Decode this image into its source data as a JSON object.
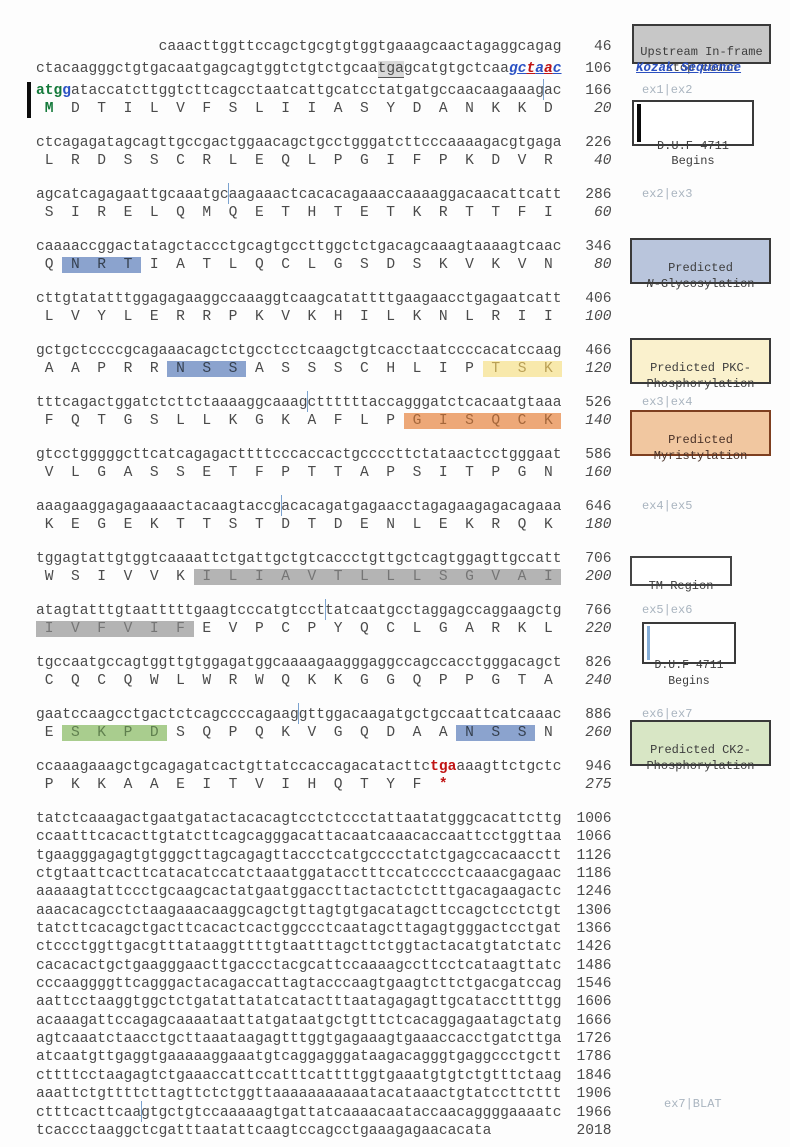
{
  "annotations": {
    "upstream_stop": "Upstream In-frame\nstop codon",
    "kozak": "Kozak Sequence",
    "exon_labels": [
      "ex1|ex2",
      "ex2|ex3",
      "ex3|ex4",
      "ex4|ex5",
      "ex5|ex6",
      "ex6|ex7",
      "ex7|BLAT"
    ],
    "duf1": "D.U.F 4711\nBegins",
    "duf2": "D.U.F 4711\nBegins",
    "nglyc_line1": "Predicted\n",
    "nglyc_n": "N",
    "nglyc_rest": "-Glycosylation",
    "pkc": "Predicted PKC-\nPhosphorylation",
    "myr": "Predicted\nMyristylation",
    "tm": "TM Region",
    "ck2": "Predicted CK2-\nPhosphorylation"
  },
  "colors": {
    "start_codon": "#157a3b",
    "kozak_blue": "#2b52c4",
    "stop_red": "#c01414",
    "glyc_highlight": "#8ba3ce",
    "pkc_highlight": "#f8e9ac",
    "myr_highlight": "#eda878",
    "tm_highlight": "#b4b4b4",
    "ck2_highlight": "#a9cd8e"
  },
  "rows": [
    {
      "kind": "dna",
      "num": "46",
      "segments": [
        {
          "t": "              caaacttggttccagctgcgtgtggtgaaagcaactagaggcagag",
          "c": "plain"
        }
      ]
    },
    {
      "kind": "dna",
      "num": "106",
      "sub": true,
      "segments": [
        {
          "t": "ctacaagggctgtgacaatgagcagtggtctgtctgcaa",
          "c": "plain"
        },
        {
          "t": "tga",
          "c": "stop"
        },
        {
          "t": "gcatgtgctcaa",
          "c": "plain"
        },
        {
          "t": "g",
          "c": "kz-b"
        },
        {
          "t": "c",
          "c": "kz-b"
        },
        {
          "t": "t",
          "c": "kz-r"
        },
        {
          "t": "a",
          "c": "kz-b"
        },
        {
          "t": "a",
          "c": "kz-r"
        },
        {
          "t": "c",
          "c": "kz-b"
        }
      ]
    },
    {
      "kind": "dna",
      "num": "166",
      "sub": true,
      "segments": [
        {
          "t": "atg",
          "c": "b-green"
        },
        {
          "t": "g",
          "c": "b-blue"
        },
        {
          "t": "ataccatcttggtcttcagcctaatcattgcatcctatgatgccaacaagaaag",
          "c": "plain"
        },
        {
          "tick": true
        },
        {
          "t": "ac",
          "c": "plain"
        }
      ]
    },
    {
      "kind": "protein",
      "num": "20",
      "italic": true,
      "segments": [
        {
          "t": " M ",
          "c": "b-green"
        },
        {
          "t": " D  T  I  L  V  F  S  L  I  I  A  S  Y  D  A  N  K  K  D ",
          "c": "plain"
        }
      ]
    },
    {
      "kind": "dna",
      "num": "226",
      "gs": true,
      "segments": [
        {
          "t": "ctcagagatagcagttgccgactggaacagctgcctgggatcttcccaaaagacgtgaga",
          "c": "plain"
        }
      ]
    },
    {
      "kind": "protein",
      "num": "40",
      "italic": true,
      "segments": [
        {
          "t": " L  R  D  S  S  C  R  L  E  Q  L  P  G  I  F  P  K  D  V  R ",
          "c": "plain"
        }
      ]
    },
    {
      "kind": "dna",
      "num": "286",
      "gs": true,
      "segments": [
        {
          "t": "agcatcagagaattgcaaatgc",
          "c": "plain"
        },
        {
          "tick": true
        },
        {
          "t": "aagaaactcacacagaaaccaaaaggacaacattcatt",
          "c": "plain"
        }
      ]
    },
    {
      "kind": "protein",
      "num": "60",
      "italic": true,
      "segments": [
        {
          "t": " S  I  R  E  L  Q  M  Q  E  T  H  T  E  T  K  R  T  T  F  I ",
          "c": "plain"
        }
      ]
    },
    {
      "kind": "dna",
      "num": "346",
      "gs": true,
      "segments": [
        {
          "t": "caaaaccggactatagctaccctgcagtgccttggctctgacagcaaagtaaaagtcaac",
          "c": "plain"
        }
      ]
    },
    {
      "kind": "protein",
      "num": "80",
      "italic": true,
      "segments": [
        {
          "t": " Q ",
          "c": "plain"
        },
        {
          "t": " N  R  T ",
          "c": "hl-blue"
        },
        {
          "t": " I  A  T  L  Q  C  L  G  S  D  S  K  V  K  V  N ",
          "c": "plain"
        }
      ]
    },
    {
      "kind": "dna",
      "num": "406",
      "gs": true,
      "segments": [
        {
          "t": "cttgtatatttggagagaaggccaaaggtcaagcatattttgaagaacctgagaatcatt",
          "c": "plain"
        }
      ]
    },
    {
      "kind": "protein",
      "num": "100",
      "italic": true,
      "segments": [
        {
          "t": " L  V  Y  L  E  R  R  P  K  V  K  H  I  L  K  N  L  R  I  I ",
          "c": "plain"
        }
      ]
    },
    {
      "kind": "dna",
      "num": "466",
      "gs": true,
      "segments": [
        {
          "t": "gctgctccccgcagaaacagctctgcctcctcaagctgtcacctaatccccacatccaag",
          "c": "plain"
        }
      ]
    },
    {
      "kind": "protein",
      "num": "120",
      "italic": true,
      "segments": [
        {
          "t": " A  A  P  R  R ",
          "c": "plain"
        },
        {
          "t": " N  S  S ",
          "c": "hl-blue"
        },
        {
          "t": " A  S  S  S  C  H  L  I  P ",
          "c": "plain"
        },
        {
          "t": " T  S  K ",
          "c": "hl-yellow"
        }
      ]
    },
    {
      "kind": "dna",
      "num": "526",
      "gs": true,
      "segments": [
        {
          "t": "tttcagactggatctcttctaaaaggcaaag",
          "c": "plain"
        },
        {
          "tick": true
        },
        {
          "t": "cttttttaccagggatctcacaatgtaaa",
          "c": "plain"
        }
      ]
    },
    {
      "kind": "protein",
      "num": "140",
      "italic": true,
      "segments": [
        {
          "t": " F  Q  T  G  S  L  L  K  G  K  A  F  L  P ",
          "c": "plain"
        },
        {
          "t": " G  I  S  Q  C  K ",
          "c": "hl-orange"
        }
      ]
    },
    {
      "kind": "dna",
      "num": "586",
      "gs": true,
      "segments": [
        {
          "t": "gtcctgggggcttcatcagagacttttcccaccactgccccttctataactcctgggaat",
          "c": "plain"
        }
      ]
    },
    {
      "kind": "protein",
      "num": "160",
      "italic": true,
      "segments": [
        {
          "t": " V  L  G  A  S  S  E  T  F  P  T  T  A  P  S  I  T  P  G  N ",
          "c": "plain"
        }
      ]
    },
    {
      "kind": "dna",
      "num": "646",
      "gs": true,
      "segments": [
        {
          "t": "aaagaaggagagaaaactacaagtaccg",
          "c": "plain"
        },
        {
          "tick": true
        },
        {
          "t": "acacagatgagaacctagagaagagacagaaa",
          "c": "plain"
        }
      ]
    },
    {
      "kind": "protein",
      "num": "180",
      "italic": true,
      "segments": [
        {
          "t": " K  E  G  E  K  T  T  S  T  D  T  D  E  N  L  E  K  R  Q  K ",
          "c": "plain"
        }
      ]
    },
    {
      "kind": "dna",
      "num": "706",
      "gs": true,
      "segments": [
        {
          "t": "tggagtattgtggtcaaaattctgattgctgtcaccctgttgctcagtggagttgccatt",
          "c": "plain"
        }
      ]
    },
    {
      "kind": "protein",
      "num": "200",
      "italic": true,
      "segments": [
        {
          "t": " W  S  I  V  V  K ",
          "c": "plain"
        },
        {
          "t": " I  L  I  A  V  T  L  L  L  S  G  V  A  I ",
          "c": "hl-gray"
        }
      ]
    },
    {
      "kind": "dna",
      "num": "766",
      "gs": true,
      "segments": [
        {
          "t": "atagtatttgtaatttttgaagtcccatgtcct",
          "c": "plain"
        },
        {
          "tick": true
        },
        {
          "t": "tatcaatgcctaggagccaggaagctg",
          "c": "plain"
        }
      ]
    },
    {
      "kind": "protein",
      "num": "220",
      "italic": true,
      "segments": [
        {
          "t": " I  V  F  V  I  F ",
          "c": "hl-gray"
        },
        {
          "t": " E  V  P  C  P  Y  Q  C  L  G  A  R  K  L ",
          "c": "plain"
        }
      ]
    },
    {
      "kind": "dna",
      "num": "826",
      "gs": true,
      "segments": [
        {
          "t": "tgccaatgccagtggttgtggagatggcaaaagaagggaggccagccacctgggacagct",
          "c": "plain"
        }
      ]
    },
    {
      "kind": "protein",
      "num": "240",
      "italic": true,
      "segments": [
        {
          "t": " C  Q  C  Q  W  L  W  R  W  Q  K  K  G  G  Q  P  P  G  T  A ",
          "c": "plain"
        }
      ]
    },
    {
      "kind": "dna",
      "num": "886",
      "gs": true,
      "segments": [
        {
          "t": "gaatccaagcctgactctcagccccagaag",
          "c": "plain"
        },
        {
          "tick": true
        },
        {
          "t": "gttggacaagatgctgccaattcatcaaac",
          "c": "plain"
        }
      ]
    },
    {
      "kind": "protein",
      "num": "260",
      "italic": true,
      "segments": [
        {
          "t": " E ",
          "c": "plain"
        },
        {
          "t": " S  K  P  D ",
          "c": "hl-green"
        },
        {
          "t": " S  Q  P  Q  K  V  G  Q  D  A  A ",
          "c": "plain"
        },
        {
          "t": " N  S  S ",
          "c": "hl-blue"
        },
        {
          "t": " N ",
          "c": "plain"
        }
      ]
    },
    {
      "kind": "dna",
      "num": "946",
      "gs": true,
      "segments": [
        {
          "t": "ccaaagaaagctgcagagatcactgttatccaccagacatacttc",
          "c": "plain"
        },
        {
          "t": "tga",
          "c": "b-red"
        },
        {
          "t": "aaagttctgctc",
          "c": "plain"
        }
      ]
    },
    {
      "kind": "protein",
      "num": "275",
      "italic": true,
      "segments": [
        {
          "t": " P  K  K  A  A  E  I  T  V  I  H  Q  T  Y  F ",
          "c": "plain"
        },
        {
          "t": " * ",
          "c": "b-red"
        },
        {
          "t": "            ",
          "c": "plain"
        }
      ]
    },
    {
      "kind": "dna",
      "utr": true,
      "gs": true,
      "num": "1006",
      "segments": [
        {
          "t": "tatctcaaagactgaatgatactacacagtcctctccctattaatatgggcacattcttg",
          "c": "plain"
        }
      ]
    },
    {
      "kind": "dna",
      "utr": true,
      "num": "1066",
      "segments": [
        {
          "t": "ccaatttcacacttgtatcttcagcagggacattacaatcaaacaccaattcctggttaa",
          "c": "plain"
        }
      ]
    },
    {
      "kind": "dna",
      "utr": true,
      "num": "1126",
      "segments": [
        {
          "t": "tgaagggagagtgtgggcttagcagagttaccctcatgcccctatctgagccacaacctt",
          "c": "plain"
        }
      ]
    },
    {
      "kind": "dna",
      "utr": true,
      "num": "1186",
      "segments": [
        {
          "t": "ctgtaattcacttcatacatccatctaaatggatacctttccatcccctcaaacgagaac",
          "c": "plain"
        }
      ]
    },
    {
      "kind": "dna",
      "utr": true,
      "num": "1246",
      "segments": [
        {
          "t": "aaaaagtattccctgcaagcactatgaatggaccttactactctctttgacagaagactc",
          "c": "plain"
        }
      ]
    },
    {
      "kind": "dna",
      "utr": true,
      "num": "1306",
      "segments": [
        {
          "t": "aaacacagcctctaagaaacaaggcagctgttagtgtgacatagcttccagctcctctgt",
          "c": "plain"
        }
      ]
    },
    {
      "kind": "dna",
      "utr": true,
      "num": "1366",
      "segments": [
        {
          "t": "tatcttcacagctgacttcacactcactggccctcaatagcttagagtgggactcctgat",
          "c": "plain"
        }
      ]
    },
    {
      "kind": "dna",
      "utr": true,
      "num": "1426",
      "segments": [
        {
          "t": "ctccctggttgacgtttataaggttttgtaatttagcttctggtactacatgtatctatc",
          "c": "plain"
        }
      ]
    },
    {
      "kind": "dna",
      "utr": true,
      "num": "1486",
      "segments": [
        {
          "t": "cacacactgctgaagggaacttgaccctacgcattccaaaagccttcctcataagttatc",
          "c": "plain"
        }
      ]
    },
    {
      "kind": "dna",
      "utr": true,
      "num": "1546",
      "segments": [
        {
          "t": "cccaaggggttcagggactacagaccattagtacccaagtgaagtcttctgacgatccag",
          "c": "plain"
        }
      ]
    },
    {
      "kind": "dna",
      "utr": true,
      "num": "1606",
      "segments": [
        {
          "t": "aattcctaaggtggctctgatattatatcatactttaatagagagttgcataccttttgg",
          "c": "plain"
        }
      ]
    },
    {
      "kind": "dna",
      "utr": true,
      "num": "1666",
      "segments": [
        {
          "t": "acaaagattccagagcaaaataattatgataatgctgtttctcacaggagaatagctatg",
          "c": "plain"
        }
      ]
    },
    {
      "kind": "dna",
      "utr": true,
      "num": "1726",
      "segments": [
        {
          "t": "agtcaaatctaacctgcttaaataagagtttggtgagaaagtgaaaccacctgatcttga",
          "c": "plain"
        }
      ]
    },
    {
      "kind": "dna",
      "utr": true,
      "num": "1786",
      "segments": [
        {
          "t": "atcaatgttgaggtgaaaaaggaaatgtcaggagggataagacagggtgaggccctgctt",
          "c": "plain"
        }
      ]
    },
    {
      "kind": "dna",
      "utr": true,
      "num": "1846",
      "segments": [
        {
          "t": "cttttcctaagagtctgaaaccattccatttcattttggtgaaatgtgtctgtttctaag",
          "c": "plain"
        }
      ]
    },
    {
      "kind": "dna",
      "utr": true,
      "num": "1906",
      "segments": [
        {
          "t": "aaattctgttttcttagttctctggttaaaaaaaaaaatacataaactgtatccttcttt",
          "c": "plain"
        }
      ]
    },
    {
      "kind": "dna",
      "utr": true,
      "num": "1966",
      "segments": [
        {
          "t": "ctttcacttcaa",
          "c": "plain"
        },
        {
          "tick": true
        },
        {
          "t": "gtgctgtccaaaaagtgattatcaaaacaataccaacaggggaaaatc",
          "c": "plain"
        }
      ]
    },
    {
      "kind": "dna",
      "utr": true,
      "num": "2018",
      "segments": [
        {
          "t": "tcaccctaaggctcgatttaatattcaagtccagcctgaaagagaacacata        ",
          "c": "plain"
        }
      ]
    }
  ]
}
